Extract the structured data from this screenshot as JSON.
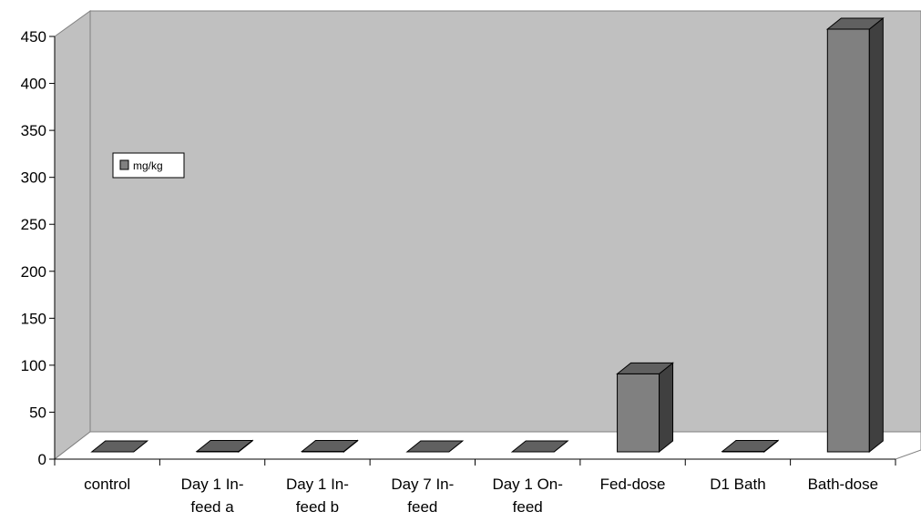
{
  "chart_data": {
    "type": "bar",
    "style": "3d-column",
    "categories": [
      [
        "control"
      ],
      [
        "Day 1 In-",
        "feed a"
      ],
      [
        "Day 1 In-",
        "feed b"
      ],
      [
        "Day 7 In-",
        "feed"
      ],
      [
        "Day 1 On-",
        "feed"
      ],
      [
        "Fed-dose"
      ],
      [
        "D1 Bath"
      ],
      [
        "Bath-dose"
      ]
    ],
    "series": [
      {
        "name": "mg/kg",
        "values": [
          0,
          0.5,
          0.5,
          0,
          0,
          83,
          0.5,
          450
        ]
      }
    ],
    "ylim": [
      0,
      450
    ],
    "yticks": [
      0,
      50,
      100,
      150,
      200,
      250,
      300,
      350,
      400,
      450
    ],
    "grid": false,
    "legend_position": "left",
    "colors": {
      "back_wall": "#c0c0c0",
      "bar_front": "#808080",
      "bar_top": "#606060",
      "bar_side": "#404040",
      "outline": "#000000"
    }
  }
}
